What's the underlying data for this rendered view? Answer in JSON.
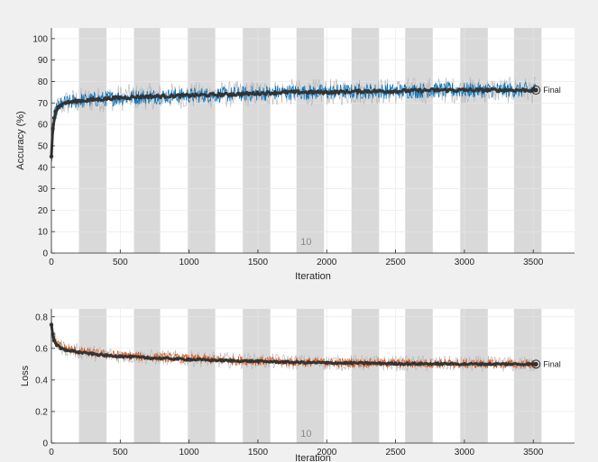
{
  "chart_data": [
    {
      "type": "line",
      "panel": "accuracy",
      "xlabel": "Iteration",
      "ylabel": "Accuracy (%)",
      "xlim": [
        0,
        3800
      ],
      "ylim": [
        0,
        105
      ],
      "xticks": [
        "0",
        "500",
        "1000",
        "1500",
        "2000",
        "2500",
        "3000",
        "3500"
      ],
      "yticks": [
        "0",
        "10",
        "20",
        "30",
        "40",
        "50",
        "60",
        "70",
        "80",
        "90",
        "100"
      ],
      "grid": true,
      "epoch_bands": [
        [
          200,
          400
        ],
        [
          600,
          790
        ],
        [
          990,
          1190
        ],
        [
          1390,
          1590
        ],
        [
          1780,
          1980
        ],
        [
          2180,
          2380
        ],
        [
          2570,
          2770
        ],
        [
          2970,
          3170
        ],
        [
          3360,
          3560
        ]
      ],
      "epoch_label": "10",
      "final_label": "Final",
      "final_point": {
        "x": 3520,
        "y": 76
      },
      "series": [
        {
          "role": "raw",
          "color": "#0072bd",
          "x": [
            0,
            10,
            20,
            30,
            50,
            70,
            100,
            150,
            200,
            300,
            400,
            500,
            700,
            1000,
            1300,
            1500,
            1700,
            2000,
            2300,
            2500,
            2800,
            3000,
            3300,
            3520
          ],
          "y": [
            40,
            55,
            62,
            66,
            68,
            69,
            70,
            70.5,
            71,
            71.5,
            72,
            72.5,
            73,
            73.5,
            74,
            74.5,
            75,
            75,
            75.5,
            75.5,
            76,
            76,
            76,
            76
          ]
        },
        {
          "role": "smoothed",
          "color": "#333333",
          "x": [
            0,
            10,
            20,
            30,
            50,
            70,
            100,
            150,
            200,
            300,
            400,
            500,
            700,
            1000,
            1300,
            1500,
            1700,
            2000,
            2300,
            2500,
            2800,
            3000,
            3300,
            3520
          ],
          "y": [
            45,
            58,
            63,
            66,
            68,
            69,
            70,
            70.5,
            71,
            71.5,
            72,
            72.5,
            73,
            73.5,
            74,
            74.5,
            75,
            75,
            75.5,
            75.5,
            76,
            76,
            76,
            76
          ]
        }
      ]
    },
    {
      "type": "line",
      "panel": "loss",
      "xlabel": "Iteration",
      "ylabel": "Loss",
      "xlim": [
        0,
        3800
      ],
      "ylim": [
        0,
        0.85
      ],
      "xticks": [
        "0",
        "500",
        "1000",
        "1500",
        "2000",
        "2500",
        "3000",
        "3500"
      ],
      "yticks": [
        "0",
        "0.2",
        "0.4",
        "0.6",
        "0.8"
      ],
      "grid": true,
      "epoch_bands": [
        [
          200,
          400
        ],
        [
          600,
          790
        ],
        [
          990,
          1190
        ],
        [
          1390,
          1590
        ],
        [
          1780,
          1980
        ],
        [
          2180,
          2380
        ],
        [
          2570,
          2770
        ],
        [
          2970,
          3170
        ],
        [
          3360,
          3560
        ]
      ],
      "epoch_label": "10",
      "final_label": "Final",
      "final_point": {
        "x": 3520,
        "y": 0.5
      },
      "series": [
        {
          "role": "raw",
          "color": "#d95319",
          "x": [
            0,
            10,
            20,
            40,
            70,
            100,
            150,
            200,
            300,
            400,
            500,
            700,
            1000,
            1300,
            1500,
            1700,
            2000,
            2300,
            2500,
            2800,
            3000,
            3300,
            3520
          ],
          "y": [
            0.8,
            0.7,
            0.66,
            0.63,
            0.61,
            0.6,
            0.59,
            0.58,
            0.57,
            0.56,
            0.555,
            0.545,
            0.535,
            0.525,
            0.52,
            0.515,
            0.51,
            0.508,
            0.505,
            0.503,
            0.502,
            0.5,
            0.5
          ]
        },
        {
          "role": "smoothed",
          "color": "#333333",
          "x": [
            0,
            10,
            20,
            40,
            70,
            100,
            150,
            200,
            300,
            400,
            500,
            700,
            1000,
            1300,
            1500,
            1700,
            2000,
            2300,
            2500,
            2800,
            3000,
            3300,
            3520
          ],
          "y": [
            0.75,
            0.69,
            0.65,
            0.62,
            0.6,
            0.59,
            0.585,
            0.575,
            0.565,
            0.555,
            0.55,
            0.54,
            0.53,
            0.522,
            0.518,
            0.513,
            0.508,
            0.506,
            0.503,
            0.502,
            0.501,
            0.5,
            0.5
          ]
        }
      ]
    }
  ]
}
